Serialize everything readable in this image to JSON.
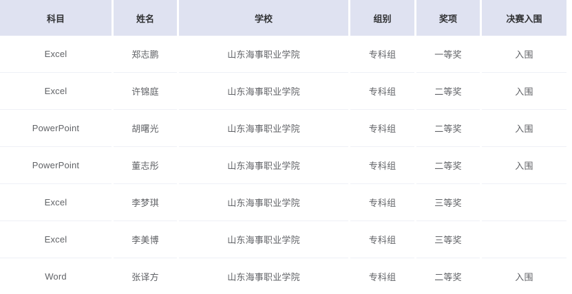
{
  "table": {
    "columns": [
      {
        "key": "subject",
        "label": "科目"
      },
      {
        "key": "name",
        "label": "姓名"
      },
      {
        "key": "school",
        "label": "学校"
      },
      {
        "key": "group",
        "label": "组别"
      },
      {
        "key": "award",
        "label": "奖项"
      },
      {
        "key": "finalist",
        "label": "决赛入围"
      }
    ],
    "rows": [
      [
        "Excel",
        "郑志鹏",
        "山东海事职业学院",
        "专科组",
        "一等奖",
        "入围"
      ],
      [
        "Excel",
        "许锦庭",
        "山东海事职业学院",
        "专科组",
        "二等奖",
        "入围"
      ],
      [
        "PowerPoint",
        "胡曙光",
        "山东海事职业学院",
        "专科组",
        "二等奖",
        "入围"
      ],
      [
        "PowerPoint",
        "董志彤",
        "山东海事职业学院",
        "专科组",
        "二等奖",
        "入围"
      ],
      [
        "Excel",
        "李梦琪",
        "山东海事职业学院",
        "专科组",
        "三等奖",
        ""
      ],
      [
        "Excel",
        "李美博",
        "山东海事职业学院",
        "专科组",
        "三等奖",
        ""
      ],
      [
        "Word",
        "张译方",
        "山东海事职业学院",
        "专科组",
        "二等奖",
        "入围"
      ]
    ]
  },
  "colors": {
    "header_bg": "#dfe2f1",
    "header_text": "#303133",
    "body_text": "#606266",
    "divider": "#eef0f6"
  }
}
